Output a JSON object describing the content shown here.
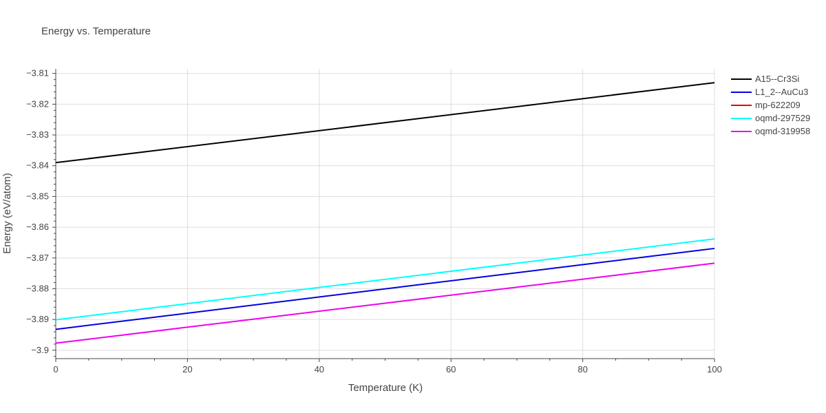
{
  "chart_data": {
    "type": "line",
    "title": "Energy vs. Temperature",
    "xlabel": "Temperature (K)",
    "ylabel": "Energy (eV/atom)",
    "xlim": [
      0,
      100
    ],
    "ylim": [
      -3.9025,
      -3.8085
    ],
    "x_ticks": [
      0,
      20,
      40,
      60,
      80,
      100
    ],
    "y_ticks": [
      -3.9,
      -3.89,
      -3.88,
      -3.87,
      -3.86,
      -3.85,
      -3.84,
      -3.83,
      -3.82,
      -3.81
    ],
    "grid": true,
    "legend_position": "top-right",
    "series": [
      {
        "name": "A15--Cr3Si",
        "color": "#000000",
        "x": [
          0,
          100
        ],
        "y": [
          -3.839,
          -3.813
        ]
      },
      {
        "name": "L1_2--AuCu3",
        "color": "#0000dd",
        "x": [
          0,
          100
        ],
        "y": [
          -3.8932,
          -3.8669
        ]
      },
      {
        "name": "mp-622209",
        "color": "#ee0000",
        "x": [],
        "y": []
      },
      {
        "name": "oqmd-297529",
        "color": "#00ffff",
        "x": [
          0,
          100
        ],
        "y": [
          -3.8901,
          -3.8638
        ]
      },
      {
        "name": "oqmd-319958",
        "color": "#ee00ee",
        "x": [
          0,
          100
        ],
        "y": [
          -3.8977,
          -3.8717
        ]
      }
    ]
  }
}
